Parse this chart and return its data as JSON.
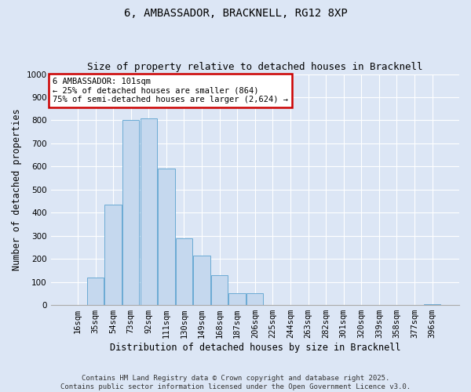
{
  "title": "6, AMBASSADOR, BRACKNELL, RG12 8XP",
  "subtitle": "Size of property relative to detached houses in Bracknell",
  "xlabel": "Distribution of detached houses by size in Bracknell",
  "ylabel": "Number of detached properties",
  "categories": [
    "16sqm",
    "35sqm",
    "54sqm",
    "73sqm",
    "92sqm",
    "111sqm",
    "130sqm",
    "149sqm",
    "168sqm",
    "187sqm",
    "206sqm",
    "225sqm",
    "244sqm",
    "263sqm",
    "282sqm",
    "301sqm",
    "320sqm",
    "339sqm",
    "358sqm",
    "377sqm",
    "396sqm"
  ],
  "values": [
    0,
    120,
    435,
    800,
    810,
    590,
    290,
    215,
    130,
    50,
    50,
    0,
    0,
    0,
    0,
    0,
    0,
    0,
    0,
    0,
    5
  ],
  "bar_color": "#c5d8ee",
  "bar_edge_color": "#6aaad4",
  "annotation_box_text": "6 AMBASSADOR: 101sqm\n← 25% of detached houses are smaller (864)\n75% of semi-detached houses are larger (2,624) →",
  "annotation_box_color": "#ffffff",
  "annotation_box_edge_color": "#cc0000",
  "ylim": [
    0,
    1000
  ],
  "yticks": [
    0,
    100,
    200,
    300,
    400,
    500,
    600,
    700,
    800,
    900,
    1000
  ],
  "bg_color": "#dce6f5",
  "plot_bg_color": "#dce6f5",
  "grid_color": "#ffffff",
  "footer_text": "Contains HM Land Registry data © Crown copyright and database right 2025.\nContains public sector information licensed under the Open Government Licence v3.0.",
  "title_fontsize": 10,
  "subtitle_fontsize": 9,
  "xlabel_fontsize": 8.5,
  "ylabel_fontsize": 8.5,
  "tick_fontsize": 7.5,
  "annotation_fontsize": 7.5,
  "footer_fontsize": 6.5
}
